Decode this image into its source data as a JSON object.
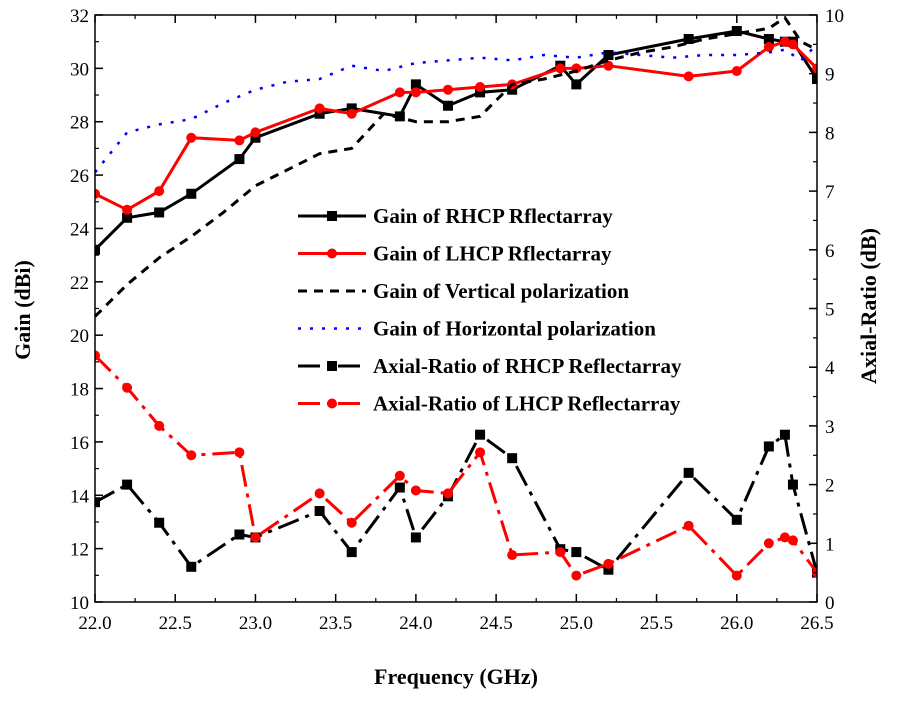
{
  "chart_data": {
    "type": "line",
    "xlabel": "Frequency (GHz)",
    "ylabel_left": "Gain (dBi)",
    "ylabel_right": "Axial-Ratio (dB)",
    "xlim": [
      22.0,
      26.5
    ],
    "ylim_left": [
      10,
      32
    ],
    "ylim_right": [
      0,
      10
    ],
    "x_ticks": [
      "22.0",
      "22.5",
      "23.0",
      "23.5",
      "24.0",
      "24.5",
      "25.0",
      "25.5",
      "26.0",
      "26.5"
    ],
    "y_left_ticks": [
      "10",
      "12",
      "14",
      "16",
      "18",
      "20",
      "22",
      "24",
      "26",
      "28",
      "30",
      "32"
    ],
    "y_right_ticks": [
      "0",
      "1",
      "2",
      "3",
      "4",
      "5",
      "6",
      "7",
      "8",
      "9",
      "10"
    ],
    "grid": false,
    "legend_position": "center-right",
    "series": [
      {
        "name": "Gain of RHCP Rflectarray",
        "axis": "left",
        "color": "#000000",
        "dash": "solid",
        "marker": "square",
        "x": [
          22.0,
          22.2,
          22.4,
          22.6,
          22.9,
          23.0,
          23.4,
          23.6,
          23.9,
          24.0,
          24.2,
          24.4,
          24.6,
          24.9,
          25.0,
          25.2,
          25.7,
          26.0,
          26.2,
          26.3,
          26.35,
          26.5
        ],
        "y": [
          23.2,
          24.4,
          24.6,
          25.3,
          26.6,
          27.4,
          28.3,
          28.5,
          28.2,
          29.4,
          28.6,
          29.1,
          29.2,
          30.1,
          29.4,
          30.5,
          31.1,
          31.4,
          31.1,
          31.0,
          31.0,
          29.6
        ]
      },
      {
        "name": "Gain of LHCP Rflectarray",
        "axis": "left",
        "color": "#ff0000",
        "dash": "solid",
        "marker": "circle",
        "x": [
          22.0,
          22.2,
          22.4,
          22.6,
          22.9,
          23.0,
          23.4,
          23.6,
          23.9,
          24.0,
          24.2,
          24.4,
          24.6,
          24.9,
          25.0,
          25.2,
          25.7,
          26.0,
          26.2,
          26.3,
          26.35,
          26.5
        ],
        "y": [
          25.3,
          24.7,
          25.4,
          27.4,
          27.3,
          27.6,
          28.5,
          28.3,
          29.1,
          29.1,
          29.2,
          29.3,
          29.4,
          30.0,
          30.0,
          30.1,
          29.7,
          29.9,
          30.8,
          31.0,
          30.9,
          30.0
        ]
      },
      {
        "name": "Gain of Vertical polarization",
        "axis": "left",
        "color": "#000000",
        "dash": "dash",
        "marker": "none",
        "x": [
          22.0,
          22.2,
          22.4,
          22.6,
          22.8,
          23.0,
          23.2,
          23.4,
          23.6,
          23.8,
          24.0,
          24.2,
          24.4,
          24.6,
          24.8,
          25.0,
          25.2,
          25.4,
          25.6,
          25.8,
          26.0,
          26.2,
          26.3,
          26.4,
          26.5
        ],
        "y": [
          20.7,
          21.9,
          22.9,
          23.7,
          24.6,
          25.6,
          26.2,
          26.8,
          27.0,
          28.3,
          28.0,
          28.0,
          28.2,
          29.4,
          29.6,
          29.9,
          30.3,
          30.6,
          30.8,
          31.1,
          31.3,
          31.5,
          31.9,
          31.0,
          30.7
        ]
      },
      {
        "name": "Gain of Horizontal polarization",
        "axis": "left",
        "color": "#0000ff",
        "dash": "dot",
        "marker": "none",
        "x": [
          22.0,
          22.2,
          22.4,
          22.6,
          22.8,
          23.0,
          23.2,
          23.4,
          23.6,
          23.8,
          24.0,
          24.2,
          24.4,
          24.6,
          24.8,
          25.0,
          25.2,
          25.4,
          25.6,
          25.8,
          26.0,
          26.2,
          26.3,
          26.4,
          26.5
        ],
        "y": [
          26.1,
          27.6,
          27.9,
          28.1,
          28.7,
          29.2,
          29.5,
          29.6,
          30.1,
          29.9,
          30.2,
          30.3,
          30.4,
          30.3,
          30.5,
          30.4,
          30.6,
          30.5,
          30.4,
          30.5,
          30.5,
          30.6,
          30.7,
          30.3,
          30.9
        ]
      },
      {
        "name": "Axial-Ratio of RHCP Reflectarray",
        "axis": "right",
        "color": "#000000",
        "dash": "dashdot",
        "marker": "square",
        "x": [
          22.0,
          22.2,
          22.4,
          22.6,
          22.9,
          23.0,
          23.4,
          23.6,
          23.9,
          24.0,
          24.2,
          24.4,
          24.6,
          24.9,
          25.0,
          25.2,
          25.7,
          26.0,
          26.2,
          26.3,
          26.35,
          26.5
        ],
        "y": [
          1.7,
          2.0,
          1.35,
          0.6,
          1.15,
          1.1,
          1.55,
          0.85,
          1.95,
          1.1,
          1.8,
          2.85,
          2.45,
          0.9,
          0.85,
          0.55,
          2.2,
          1.4,
          2.65,
          2.85,
          2.0,
          0.5
        ]
      },
      {
        "name": "Axial-Ratio of LHCP Reflectarray",
        "axis": "right",
        "color": "#ff0000",
        "dash": "dashdot",
        "marker": "circle",
        "x": [
          22.0,
          22.2,
          22.4,
          22.6,
          22.9,
          23.0,
          23.4,
          23.6,
          23.9,
          24.0,
          24.2,
          24.4,
          24.6,
          24.9,
          25.0,
          25.2,
          25.7,
          26.0,
          26.2,
          26.3,
          26.35,
          26.5
        ],
        "y": [
          4.2,
          3.65,
          3.0,
          2.5,
          2.55,
          1.1,
          1.85,
          1.35,
          2.15,
          1.9,
          1.85,
          2.55,
          0.8,
          0.85,
          0.45,
          0.65,
          1.3,
          0.45,
          1.0,
          1.1,
          1.05,
          0.5
        ]
      }
    ]
  }
}
